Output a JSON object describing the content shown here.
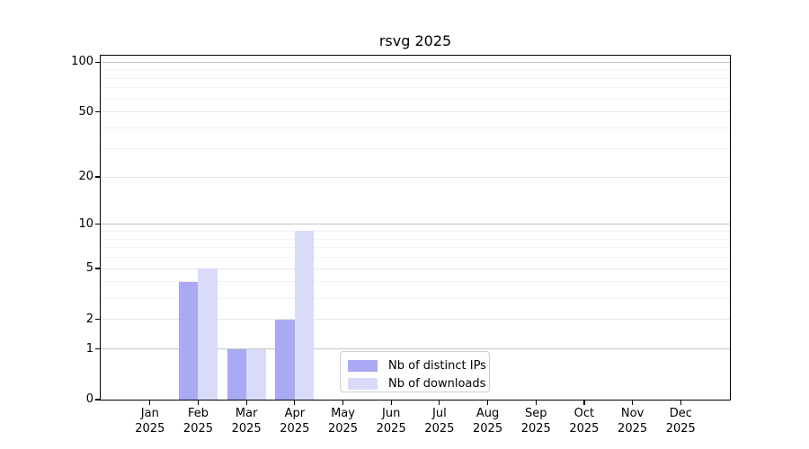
{
  "title": "rsvg 2025",
  "chart_data": {
    "type": "bar",
    "title": "rsvg 2025",
    "yscale": "symlog",
    "year": "2025",
    "categories": [
      "Jan",
      "Feb",
      "Mar",
      "Apr",
      "May",
      "Jun",
      "Jul",
      "Aug",
      "Sep",
      "Oct",
      "Nov",
      "Dec"
    ],
    "series": [
      {
        "name": "Nb of distinct IPs",
        "color": "#aaa9f4",
        "values": [
          0,
          4,
          1,
          2,
          0,
          0,
          0,
          0,
          0,
          0,
          0,
          0
        ]
      },
      {
        "name": "Nb of downloads",
        "color": "#dadaf9",
        "values": [
          0,
          5,
          1,
          9,
          0,
          0,
          0,
          0,
          0,
          0,
          0,
          0
        ]
      }
    ],
    "y_ticks": [
      0,
      1,
      2,
      5,
      10,
      20,
      50,
      100
    ],
    "ylim": [
      0,
      110
    ],
    "grid": true,
    "legend_position": "lower center"
  }
}
